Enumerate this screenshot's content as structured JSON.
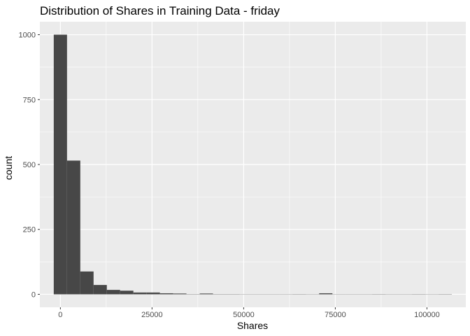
{
  "chart_data": {
    "type": "bar",
    "title": "Distribution of Shares in Training Data -  friday",
    "xlabel": "Shares",
    "ylabel": "count",
    "xlim": [
      -5600,
      110600
    ],
    "ylim": [
      -50,
      1050
    ],
    "x_ticks": [
      0,
      25000,
      50000,
      75000,
      100000
    ],
    "y_ticks": [
      0,
      250,
      500,
      750,
      1000
    ],
    "x_tick_labels": [
      "0",
      "25000",
      "50000",
      "75000",
      "100000"
    ],
    "y_tick_labels": [
      "0",
      "250",
      "500",
      "750",
      "1000"
    ],
    "bin_width": 3620,
    "bins": [
      {
        "x0": -1810,
        "x1": 1810,
        "count": 1000
      },
      {
        "x0": 1810,
        "x1": 5430,
        "count": 515
      },
      {
        "x0": 5430,
        "x1": 9050,
        "count": 88
      },
      {
        "x0": 9050,
        "x1": 12670,
        "count": 36
      },
      {
        "x0": 12670,
        "x1": 16290,
        "count": 17
      },
      {
        "x0": 16290,
        "x1": 19910,
        "count": 14
      },
      {
        "x0": 19910,
        "x1": 23530,
        "count": 7
      },
      {
        "x0": 23530,
        "x1": 27150,
        "count": 7
      },
      {
        "x0": 27150,
        "x1": 30770,
        "count": 4
      },
      {
        "x0": 30770,
        "x1": 34390,
        "count": 3
      },
      {
        "x0": 34390,
        "x1": 38010,
        "count": 1
      },
      {
        "x0": 38010,
        "x1": 41630,
        "count": 3
      },
      {
        "x0": 41630,
        "x1": 45250,
        "count": 1
      },
      {
        "x0": 45250,
        "x1": 48870,
        "count": 1
      },
      {
        "x0": 48870,
        "x1": 52490,
        "count": 0
      },
      {
        "x0": 52490,
        "x1": 56110,
        "count": 0
      },
      {
        "x0": 56110,
        "x1": 59730,
        "count": 0
      },
      {
        "x0": 59730,
        "x1": 63350,
        "count": 0
      },
      {
        "x0": 63350,
        "x1": 66970,
        "count": 1
      },
      {
        "x0": 66970,
        "x1": 70590,
        "count": 0
      },
      {
        "x0": 70590,
        "x1": 74210,
        "count": 4
      },
      {
        "x0": 74210,
        "x1": 77830,
        "count": 0
      },
      {
        "x0": 77830,
        "x1": 81450,
        "count": 0
      },
      {
        "x0": 81450,
        "x1": 85070,
        "count": 0
      },
      {
        "x0": 85070,
        "x1": 88690,
        "count": 1
      },
      {
        "x0": 88690,
        "x1": 92310,
        "count": 0
      },
      {
        "x0": 92310,
        "x1": 95930,
        "count": 0
      },
      {
        "x0": 95930,
        "x1": 99550,
        "count": 1
      },
      {
        "x0": 99550,
        "x1": 103170,
        "count": 0
      },
      {
        "x0": 103170,
        "x1": 106790,
        "count": 1
      }
    ],
    "grid": true,
    "legend": "none"
  },
  "colors": {
    "panel_background": "#ebebeb",
    "grid_major": "#ffffff",
    "bar_fill": "#474747",
    "tick_mark": "#333333"
  }
}
